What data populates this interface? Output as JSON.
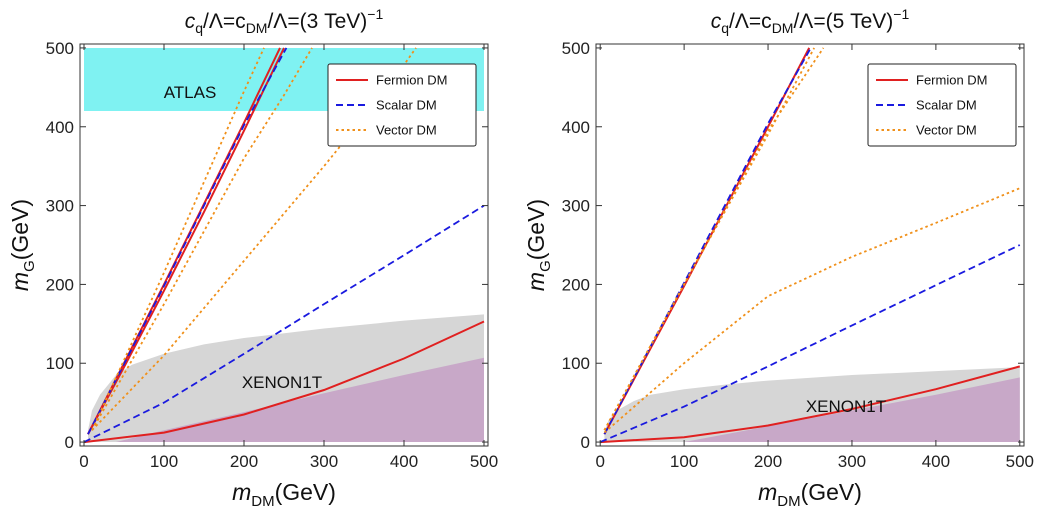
{
  "chart_data": [
    {
      "type": "line",
      "title": {
        "prefix": "c",
        "prefix_sub": "q",
        "mid": "/Λ=c",
        "mid_sub": "DM",
        "tail": "/Λ=(3 TeV)",
        "sup": "−1"
      },
      "xlabel": {
        "main": "m",
        "sub": "DM",
        "tail": "(GeV)"
      },
      "ylabel": {
        "main": "m",
        "sub": "G",
        "tail": "(GeV)"
      },
      "xlim": [
        -5,
        505
      ],
      "ylim": [
        -5,
        505
      ],
      "xticks": [
        0,
        100,
        200,
        300,
        400,
        500
      ],
      "yticks": [
        0,
        100,
        200,
        300,
        400,
        500
      ],
      "legend_position": "top-right",
      "legend": [
        {
          "name": "Fermion DM",
          "color": "#e02020",
          "dash": "solid"
        },
        {
          "name": "Scalar DM",
          "color": "#1a1adf",
          "dash": "dashed"
        },
        {
          "name": "Vector DM",
          "color": "#f0901a",
          "dash": "dotted"
        }
      ],
      "regions": [
        {
          "label": "ATLAS",
          "color": "#7ff2f2",
          "x_range": [
            0,
            500
          ],
          "y_range": [
            420,
            500
          ]
        },
        {
          "label": "XENON1T",
          "color": "#d6d6d6",
          "upper": [
            [
              5,
              15
            ],
            [
              10,
              40
            ],
            [
              20,
              60
            ],
            [
              40,
              85
            ],
            [
              60,
              98
            ],
            [
              100,
              112
            ],
            [
              150,
              124
            ],
            [
              200,
              132
            ],
            [
              300,
              144
            ],
            [
              400,
              154
            ],
            [
              500,
              162
            ]
          ]
        },
        {
          "label": "",
          "color": "#c8a8c8",
          "upper": [
            [
              40,
              0
            ],
            [
              100,
              15
            ],
            [
              200,
              38
            ],
            [
              300,
              62
            ],
            [
              400,
              85
            ],
            [
              500,
              107
            ]
          ]
        }
      ],
      "series": [
        {
          "name": "Fermion DM",
          "color": "#e02020",
          "dash": "solid",
          "points": [
            [
              0,
              0
            ],
            [
              100,
              12
            ],
            [
              200,
              35
            ],
            [
              300,
              66
            ],
            [
              400,
              106
            ],
            [
              500,
              153
            ]
          ]
        },
        {
          "name": "Fermion DM",
          "color": "#e02020",
          "dash": "solid",
          "points": [
            [
              5,
              10
            ],
            [
              50,
              95
            ],
            [
              100,
              192
            ],
            [
              150,
              292
            ],
            [
              200,
              395
            ],
            [
              250,
              500
            ]
          ]
        },
        {
          "name": "Fermion DM",
          "color": "#e02020",
          "dash": "solid",
          "points": [
            [
              5,
              10
            ],
            [
              50,
              100
            ],
            [
              100,
              200
            ],
            [
              150,
              302
            ],
            [
              200,
              405
            ],
            [
              245,
              500
            ]
          ]
        },
        {
          "name": "Scalar DM",
          "color": "#1a1adf",
          "dash": "dashed",
          "points": [
            [
              0,
              0
            ],
            [
              100,
              50
            ],
            [
              200,
              112
            ],
            [
              300,
              175
            ],
            [
              400,
              237
            ],
            [
              500,
              300
            ]
          ]
        },
        {
          "name": "Scalar DM",
          "color": "#1a1adf",
          "dash": "dashed",
          "points": [
            [
              5,
              10
            ],
            [
              100,
              198
            ],
            [
              200,
              402
            ],
            [
              253,
              500
            ]
          ]
        },
        {
          "name": "Vector DM",
          "color": "#f0901a",
          "dash": "dotted",
          "points": [
            [
              10,
              15
            ],
            [
              100,
              110
            ],
            [
              200,
              230
            ],
            [
              300,
              350
            ],
            [
              380,
              450
            ],
            [
              415,
              500
            ]
          ]
        },
        {
          "name": "Vector DM",
          "color": "#f0901a",
          "dash": "dotted",
          "points": [
            [
              10,
              15
            ],
            [
              100,
              175
            ],
            [
              200,
              360
            ],
            [
              250,
              440
            ],
            [
              285,
              500
            ]
          ]
        },
        {
          "name": "Vector DM",
          "color": "#f0901a",
          "dash": "dotted",
          "points": [
            [
              10,
              15
            ],
            [
              100,
              215
            ],
            [
              200,
              445
            ],
            [
              225,
              500
            ]
          ]
        }
      ]
    },
    {
      "type": "line",
      "title": {
        "prefix": "c",
        "prefix_sub": "q",
        "mid": "/Λ=c",
        "mid_sub": "DM",
        "tail": "/Λ=(5 TeV)",
        "sup": "−1"
      },
      "xlabel": {
        "main": "m",
        "sub": "DM",
        "tail": "(GeV)"
      },
      "ylabel": {
        "main": "m",
        "sub": "G",
        "tail": "(GeV)"
      },
      "xlim": [
        -5,
        505
      ],
      "ylim": [
        -5,
        505
      ],
      "xticks": [
        0,
        100,
        200,
        300,
        400,
        500
      ],
      "yticks": [
        0,
        100,
        200,
        300,
        400,
        500
      ],
      "legend_position": "top-right",
      "legend": [
        {
          "name": "Fermion DM",
          "color": "#e02020",
          "dash": "solid"
        },
        {
          "name": "Scalar DM",
          "color": "#1a1adf",
          "dash": "dashed"
        },
        {
          "name": "Vector DM",
          "color": "#f0901a",
          "dash": "dotted"
        }
      ],
      "regions": [
        {
          "label": "XENON1T",
          "color": "#d6d6d6",
          "upper": [
            [
              5,
              12
            ],
            [
              10,
              28
            ],
            [
              20,
              40
            ],
            [
              40,
              52
            ],
            [
              60,
              60
            ],
            [
              100,
              67
            ],
            [
              150,
              73
            ],
            [
              200,
              78
            ],
            [
              300,
              85
            ],
            [
              400,
              90
            ],
            [
              500,
              95
            ]
          ]
        },
        {
          "label": "",
          "color": "#c8a8c8",
          "upper": [
            [
              100,
              0
            ],
            [
              200,
              20
            ],
            [
              300,
              40
            ],
            [
              400,
              60
            ],
            [
              500,
              82
            ]
          ]
        }
      ],
      "series": [
        {
          "name": "Fermion DM",
          "color": "#e02020",
          "dash": "solid",
          "points": [
            [
              0,
              0
            ],
            [
              100,
              6
            ],
            [
              200,
              21
            ],
            [
              300,
              42
            ],
            [
              400,
              67
            ],
            [
              500,
              96
            ]
          ]
        },
        {
          "name": "Fermion DM",
          "color": "#e02020",
          "dash": "solid",
          "points": [
            [
              5,
              10
            ],
            [
              100,
              198
            ],
            [
              200,
              400
            ],
            [
              249,
              500
            ]
          ]
        },
        {
          "name": "Scalar DM",
          "color": "#1a1adf",
          "dash": "dashed",
          "points": [
            [
              0,
              0
            ],
            [
              100,
              45
            ],
            [
              200,
              96
            ],
            [
              300,
              148
            ],
            [
              400,
              199
            ],
            [
              500,
              250
            ]
          ]
        },
        {
          "name": "Scalar DM",
          "color": "#1a1adf",
          "dash": "dashed",
          "points": [
            [
              5,
              10
            ],
            [
              100,
              202
            ],
            [
              200,
              404
            ],
            [
              251,
              500
            ]
          ]
        },
        {
          "name": "Vector DM",
          "color": "#f0901a",
          "dash": "dotted",
          "points": [
            [
              5,
              12
            ],
            [
              100,
              100
            ],
            [
              200,
              185
            ],
            [
              300,
              235
            ],
            [
              400,
              278
            ],
            [
              500,
              322
            ]
          ]
        },
        {
          "name": "Vector DM",
          "color": "#f0901a",
          "dash": "dotted",
          "points": [
            [
              5,
              15
            ],
            [
              100,
              200
            ],
            [
              200,
              390
            ],
            [
              255,
              500
            ]
          ]
        },
        {
          "name": "Vector DM",
          "color": "#f0901a",
          "dash": "dotted",
          "points": [
            [
              5,
              15
            ],
            [
              100,
              200
            ],
            [
              200,
              395
            ],
            [
              266,
              500
            ]
          ]
        }
      ]
    }
  ]
}
